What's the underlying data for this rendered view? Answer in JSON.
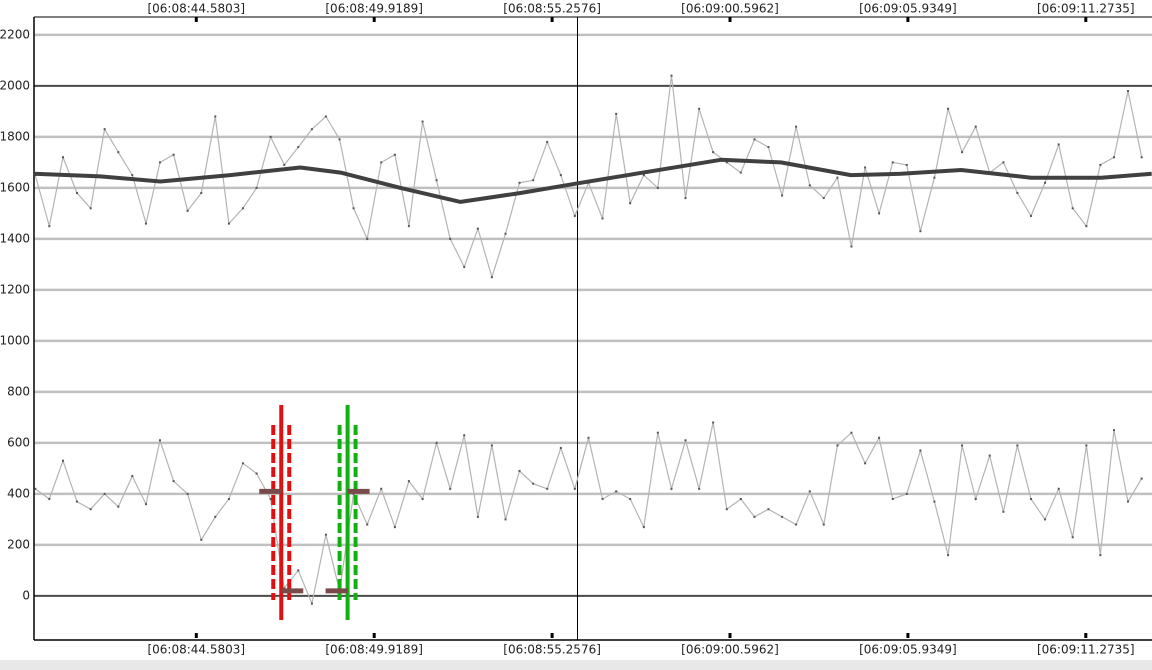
{
  "chart_data": {
    "type": "line",
    "xlim": [
      39.71,
      73.26
    ],
    "ylim": [
      -165,
      2270
    ],
    "xticks": [
      {
        "value": 44.5803,
        "label": "[06:08:44.5803]"
      },
      {
        "value": 49.9189,
        "label": "[06:08:49.9189]"
      },
      {
        "value": 55.2576,
        "label": "[06:08:55.2576]"
      },
      {
        "value": 60.5962,
        "label": "[06:09:00.5962]"
      },
      {
        "value": 65.9349,
        "label": "[06:09:05.9349]"
      },
      {
        "value": 71.2735,
        "label": "[06:09:11.2735]"
      }
    ],
    "yticks": [
      0,
      200,
      400,
      600,
      800,
      1000,
      1200,
      1400,
      1600,
      1800,
      2000,
      2200
    ],
    "major_lines": [
      0,
      2000
    ],
    "grid": true,
    "cursor_x": 56.02,
    "x": [
      39.75,
      40.17,
      40.58,
      41.0,
      41.41,
      41.83,
      42.24,
      42.66,
      43.07,
      43.49,
      43.9,
      44.32,
      44.73,
      45.15,
      45.56,
      45.98,
      46.39,
      46.81,
      47.22,
      47.64,
      48.05,
      48.47,
      48.88,
      49.3,
      49.71,
      50.13,
      50.54,
      50.96,
      51.37,
      51.79,
      52.2,
      52.62,
      53.03,
      53.45,
      53.86,
      54.28,
      54.69,
      55.11,
      55.52,
      55.94,
      56.35,
      56.77,
      57.18,
      57.6,
      58.01,
      58.43,
      58.84,
      59.26,
      59.67,
      60.09,
      60.5,
      60.92,
      61.33,
      61.75,
      62.16,
      62.58,
      62.99,
      63.41,
      63.82,
      64.24,
      64.65,
      65.07,
      65.48,
      65.9,
      66.31,
      66.73,
      67.14,
      67.56,
      67.97,
      68.39,
      68.8,
      69.22,
      69.63,
      70.05,
      70.46,
      70.88,
      71.29,
      71.71,
      72.12,
      72.54,
      72.95
    ],
    "series": [
      {
        "color": "#b4b4b4",
        "values": [
          1650,
          1450,
          1720,
          1580,
          1520,
          1830,
          1740,
          1650,
          1460,
          1700,
          1730,
          1510,
          1580,
          1880,
          1460,
          1520,
          1600,
          1800,
          1690,
          1760,
          1830,
          1880,
          1790,
          1520,
          1400,
          1700,
          1730,
          1450,
          1860,
          1630,
          1400,
          1290,
          1440,
          1250,
          1420,
          1620,
          1630,
          1780,
          1650,
          1490,
          1620,
          1480,
          1890,
          1540,
          1650,
          1600,
          2040,
          1560,
          1910,
          1740,
          1700,
          1660,
          1790,
          1760,
          1570,
          1840,
          1610,
          1560,
          1640,
          1370,
          1680,
          1500,
          1700,
          1690,
          1430,
          1640,
          1910,
          1740,
          1840,
          1660,
          1700,
          1580,
          1490,
          1620,
          1770,
          1520,
          1450,
          1690,
          1720,
          1980,
          1720
        ]
      },
      {
        "color": "#b4b4b4",
        "values": [
          420,
          380,
          530,
          370,
          340,
          400,
          350,
          470,
          360,
          610,
          450,
          400,
          220,
          310,
          380,
          520,
          480,
          380,
          30,
          100,
          -30,
          240,
          20,
          400,
          280,
          420,
          270,
          450,
          380,
          600,
          420,
          630,
          310,
          590,
          300,
          490,
          440,
          420,
          580,
          420,
          620,
          380,
          410,
          380,
          270,
          640,
          420,
          610,
          420,
          680,
          340,
          380,
          310,
          340,
          310,
          280,
          410,
          280,
          590,
          640,
          520,
          620,
          380,
          400,
          570,
          370,
          160,
          590,
          380,
          550,
          330,
          590,
          380,
          300,
          420,
          230,
          590,
          160,
          650,
          370,
          460
        ]
      }
    ],
    "smooth": {
      "color": "#404040",
      "x": [
        39.71,
        41.7,
        43.5,
        45.6,
        47.7,
        48.91,
        50.71,
        52.51,
        54.31,
        56.12,
        58.22,
        60.32,
        62.12,
        64.22,
        65.73,
        67.53,
        69.63,
        71.74,
        73.25
      ],
      "values": [
        1655,
        1645,
        1625,
        1650,
        1680,
        1660,
        1600,
        1545,
        1580,
        1620,
        1665,
        1710,
        1700,
        1650,
        1655,
        1670,
        1640,
        1640,
        1655
      ]
    },
    "markers": [
      {
        "x": 47.13,
        "color": "#e01010",
        "high": 410,
        "low": 20
      },
      {
        "x": 49.12,
        "color": "#10b010",
        "high": 410,
        "low": 20
      }
    ]
  }
}
